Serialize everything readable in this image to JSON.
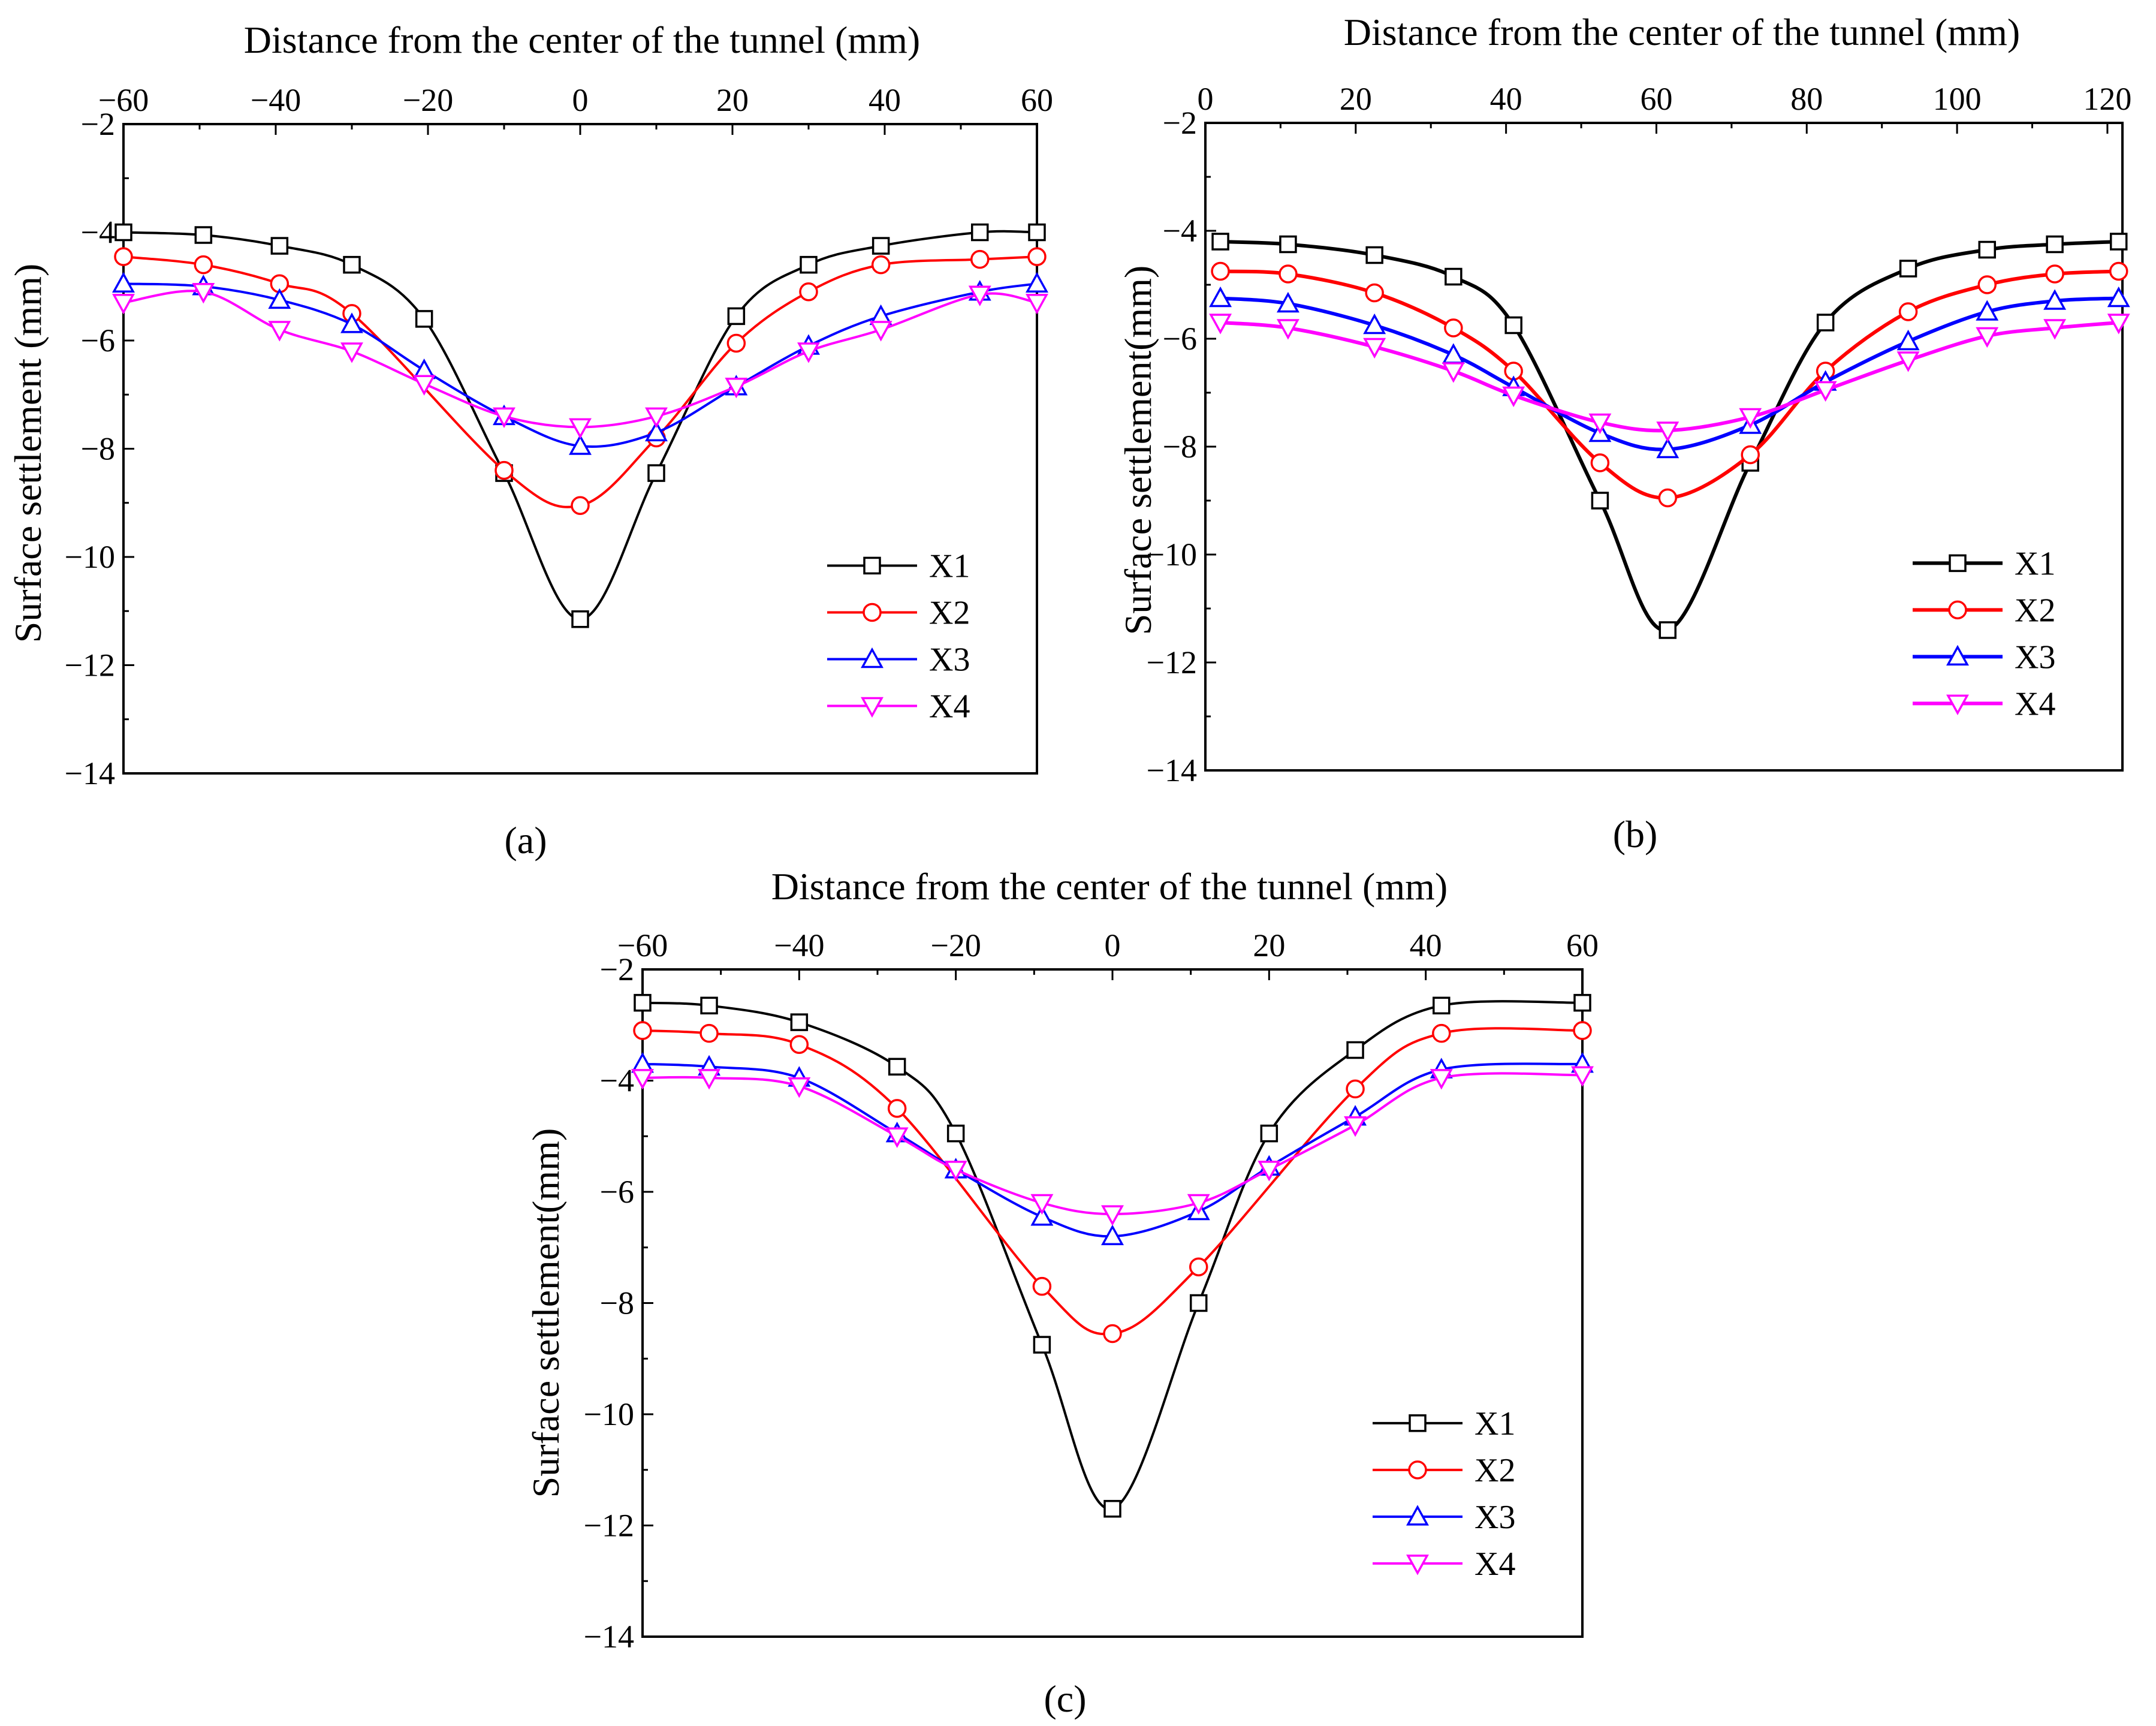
{
  "colors": {
    "X1": "#000000",
    "X2": "#ff0000",
    "X3": "#0000ff",
    "X4": "#ff00ff"
  },
  "chart_data": [
    {
      "id": "a",
      "type": "line",
      "panel_label": "(a)",
      "xlabel": "Distance from the center of the tunnel (mm)",
      "ylabel": "Surface settlement (mm)",
      "xlim": [
        -60,
        60
      ],
      "ylim": [
        -14,
        -2
      ],
      "xticks": [
        -60,
        -40,
        -20,
        0,
        20,
        40,
        60
      ],
      "xtick_labels": [
        "−60",
        "−40",
        "−20",
        "0",
        "20",
        "40",
        "60"
      ],
      "yticks": [
        -2,
        -4,
        -6,
        -8,
        -10,
        -12,
        -14
      ],
      "ytick_labels": [
        "−2",
        "−4",
        "−6",
        "−8",
        "−10",
        "−12",
        "−14"
      ],
      "legend_position": "lower-right",
      "series": [
        {
          "name": "X1",
          "marker": "square",
          "x": [
            -60,
            -49.5,
            -39.5,
            -30,
            -20.5,
            -10,
            0,
            10,
            20.5,
            30,
            39.5,
            52.5,
            60
          ],
          "y": [
            -4.0,
            -4.05,
            -4.25,
            -4.6,
            -5.6,
            -8.45,
            -11.15,
            -8.45,
            -5.55,
            -4.6,
            -4.25,
            -4.0,
            -4.0
          ]
        },
        {
          "name": "X2",
          "marker": "circle",
          "x": [
            -60,
            -49.5,
            -39.5,
            -30,
            -10,
            0,
            10,
            20.5,
            30,
            39.5,
            52.5,
            60
          ],
          "y": [
            -4.45,
            -4.6,
            -4.95,
            -5.5,
            -8.4,
            -9.05,
            -7.8,
            -6.05,
            -5.1,
            -4.6,
            -4.5,
            -4.45
          ]
        },
        {
          "name": "X3",
          "marker": "triangle-up",
          "x": [
            -60,
            -49.5,
            -39.5,
            -30,
            -20.5,
            -10,
            0,
            10,
            20.5,
            30,
            39.5,
            52.5,
            60
          ],
          "y": [
            -4.95,
            -5.0,
            -5.25,
            -5.7,
            -6.55,
            -7.4,
            -7.95,
            -7.7,
            -6.85,
            -6.1,
            -5.55,
            -5.1,
            -4.95
          ]
        },
        {
          "name": "X4",
          "marker": "triangle-down",
          "x": [
            -60,
            -49.5,
            -39.5,
            -30,
            -20.5,
            -10,
            0,
            10,
            20.5,
            30,
            39.5,
            52.5,
            60
          ],
          "y": [
            -5.3,
            -5.1,
            -5.8,
            -6.2,
            -6.8,
            -7.4,
            -7.6,
            -7.4,
            -6.85,
            -6.2,
            -5.8,
            -5.15,
            -5.3
          ]
        }
      ]
    },
    {
      "id": "b",
      "type": "line",
      "panel_label": "(b)",
      "xlabel": "Distance from the center of the tunnel (mm)",
      "ylabel": "Surface settlement(mm)",
      "xlim": [
        0,
        122
      ],
      "ylim": [
        -14,
        -2
      ],
      "xticks": [
        0,
        20,
        40,
        60,
        80,
        100,
        120
      ],
      "xtick_labels": [
        "0",
        "20",
        "40",
        "60",
        "80",
        "100",
        "120"
      ],
      "yticks": [
        -2,
        -4,
        -6,
        -8,
        -10,
        -12,
        -14
      ],
      "ytick_labels": [
        "−2",
        "−4",
        "−6",
        "−8",
        "−10",
        "−12",
        "−14"
      ],
      "legend_position": "lower-right",
      "series": [
        {
          "name": "X1",
          "marker": "square",
          "x": [
            2,
            11,
            22.5,
            33,
            41,
            52.5,
            61.5,
            72.5,
            82.5,
            93.5,
            104,
            113,
            121.5
          ],
          "y": [
            -4.2,
            -4.25,
            -4.45,
            -4.85,
            -5.75,
            -9.0,
            -11.4,
            -8.3,
            -5.7,
            -4.7,
            -4.35,
            -4.25,
            -4.2
          ]
        },
        {
          "name": "X2",
          "marker": "circle",
          "x": [
            2,
            11,
            22.5,
            33,
            41,
            52.5,
            61.5,
            72.5,
            82.5,
            93.5,
            104,
            113,
            121.5
          ],
          "y": [
            -4.75,
            -4.8,
            -5.15,
            -5.8,
            -6.6,
            -8.3,
            -8.95,
            -8.15,
            -6.6,
            -5.5,
            -5.0,
            -4.8,
            -4.75
          ]
        },
        {
          "name": "X3",
          "marker": "triangle-up",
          "x": [
            2,
            11,
            22.5,
            33,
            41,
            52.5,
            61.5,
            72.5,
            82.5,
            93.5,
            104,
            113,
            121.5
          ],
          "y": [
            -5.25,
            -5.35,
            -5.75,
            -6.3,
            -6.9,
            -7.75,
            -8.05,
            -7.6,
            -6.8,
            -6.05,
            -5.5,
            -5.3,
            -5.25
          ]
        },
        {
          "name": "X4",
          "marker": "triangle-down",
          "x": [
            2,
            11,
            22.5,
            33,
            41,
            52.5,
            61.5,
            72.5,
            82.5,
            93.5,
            104,
            113,
            121.5
          ],
          "y": [
            -5.7,
            -5.8,
            -6.15,
            -6.6,
            -7.05,
            -7.55,
            -7.7,
            -7.45,
            -6.95,
            -6.4,
            -5.95,
            -5.8,
            -5.7
          ]
        }
      ]
    },
    {
      "id": "c",
      "type": "line",
      "panel_label": "(c)",
      "xlabel": "Distance from the center of the tunnel  (mm)",
      "ylabel": "Surface settlement(mm)",
      "xlim": [
        -60,
        60
      ],
      "ylim": [
        -14,
        -2
      ],
      "xticks": [
        -60,
        -40,
        -20,
        0,
        20,
        40,
        60
      ],
      "xtick_labels": [
        "−60",
        "−40",
        "−20",
        "0",
        "20",
        "40",
        "60"
      ],
      "yticks": [
        -2,
        -4,
        -6,
        -8,
        -10,
        -12,
        -14
      ],
      "ytick_labels": [
        "−2",
        "−4",
        "−6",
        "−8",
        "−10",
        "−12",
        "−14"
      ],
      "legend_position": "lower-right",
      "series": [
        {
          "name": "X1",
          "marker": "square",
          "x": [
            -60,
            -51.5,
            -40,
            -27.5,
            -20,
            -9,
            0,
            11,
            20,
            31,
            42,
            60
          ],
          "y": [
            -2.6,
            -2.65,
            -2.95,
            -3.75,
            -4.95,
            -8.75,
            -11.7,
            -8.0,
            -4.95,
            -3.45,
            -2.65,
            -2.6
          ]
        },
        {
          "name": "X2",
          "marker": "circle",
          "x": [
            -60,
            -51.5,
            -40,
            -27.5,
            -9,
            0,
            11,
            31,
            42,
            60
          ],
          "y": [
            -3.1,
            -3.15,
            -3.35,
            -4.5,
            -7.7,
            -8.55,
            -7.35,
            -4.15,
            -3.15,
            -3.1
          ]
        },
        {
          "name": "X3",
          "marker": "triangle-up",
          "x": [
            -60,
            -51.5,
            -40,
            -27.5,
            -20,
            -9,
            0,
            11,
            20,
            31,
            42,
            60
          ],
          "y": [
            -3.7,
            -3.75,
            -3.95,
            -4.95,
            -5.6,
            -6.45,
            -6.8,
            -6.35,
            -5.55,
            -4.65,
            -3.8,
            -3.7
          ]
        },
        {
          "name": "X4",
          "marker": "triangle-down",
          "x": [
            -60,
            -51.5,
            -40,
            -27.5,
            -20,
            -9,
            0,
            11,
            20,
            31,
            42,
            60
          ],
          "y": [
            -3.95,
            -3.95,
            -4.1,
            -5.0,
            -5.6,
            -6.2,
            -6.4,
            -6.2,
            -5.6,
            -4.8,
            -3.95,
            -3.9
          ]
        }
      ]
    }
  ]
}
